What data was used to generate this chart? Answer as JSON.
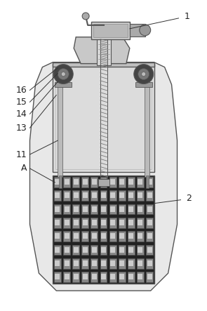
{
  "bg_color": "#ffffff",
  "line_color": "#555555",
  "dark_color": "#333333",
  "light_gray": "#cccccc",
  "mid_gray": "#999999",
  "label_color": "#222222",
  "label_fontsize": 9,
  "fig_width": 2.95,
  "fig_height": 4.43
}
